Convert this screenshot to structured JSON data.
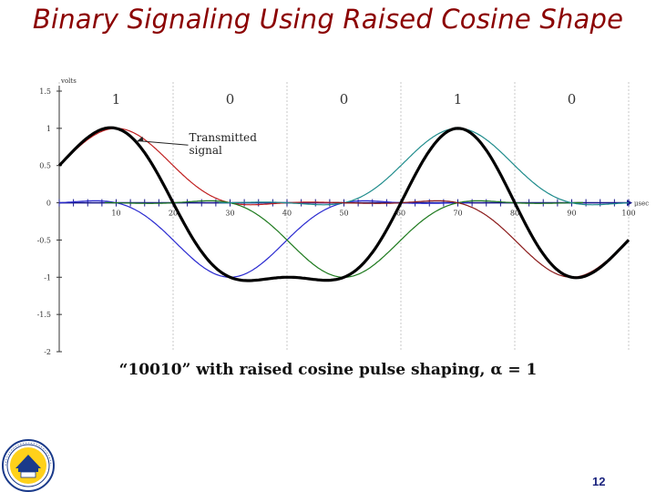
{
  "slide": {
    "title": "Binary Signaling Using Raised Cosine Shape",
    "caption": "“10010” with raised cosine pulse shaping, α = 1",
    "page_number": "12"
  },
  "chart_data": {
    "type": "line",
    "title": "",
    "ylabel": "volts",
    "xlabel": "μsec",
    "xlim": [
      0,
      100
    ],
    "ylim": [
      -2,
      1.5
    ],
    "x_ticks": [
      "10",
      "20",
      "30",
      "40",
      "50",
      "60",
      "70",
      "80",
      "90",
      "100"
    ],
    "y_ticks": [
      "1.5",
      "1",
      "0.5",
      "0",
      "-0.5",
      "-1",
      "-1.5",
      "-2"
    ],
    "bits": [
      "1",
      "0",
      "0",
      "1",
      "0"
    ],
    "annotation": {
      "line1": "Transmitted",
      "line2": "signal"
    },
    "symbol_period_us": 20,
    "pulse_centers_us": [
      10,
      30,
      50,
      70,
      90
    ],
    "amplitudes": [
      1,
      -1,
      -1,
      1,
      -1
    ],
    "series_colors": {
      "pulse_1": "#c02020",
      "pulse_2": "#2a2ad0",
      "pulse_3": "#1e7a1e",
      "pulse_4": "#1f8c8c",
      "pulse_5": "#8b1a1a",
      "transmitted": "#000000"
    },
    "grid": "vertical dotted at bit boundaries",
    "legend": "none"
  }
}
